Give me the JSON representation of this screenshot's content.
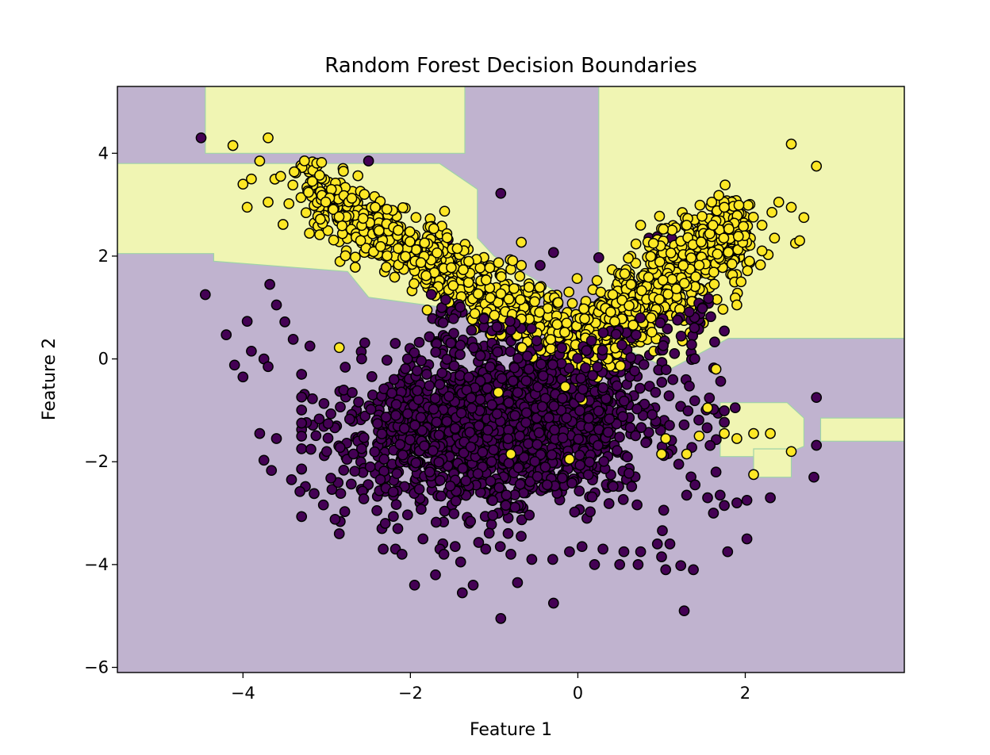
{
  "chart_data": {
    "type": "scatter",
    "title": "Random Forest Decision Boundaries",
    "xlabel": "Feature 1",
    "ylabel": "Feature 2",
    "xlim": [
      -5.5,
      3.9
    ],
    "ylim": [
      -6.1,
      5.3
    ],
    "x_ticks": [
      -4,
      -2,
      0,
      2
    ],
    "x_tick_labels": [
      "−4",
      "−2",
      "0",
      "2"
    ],
    "y_ticks": [
      -6,
      -4,
      -2,
      0,
      2,
      4
    ],
    "y_tick_labels": [
      "−6",
      "−4",
      "−2",
      "0",
      "2",
      "4"
    ],
    "grid": false,
    "legend": "none",
    "colors": {
      "class0_region": "#c0b3cf",
      "class1_region": "#f0f5b3",
      "class0_point": "#440154",
      "class1_point": "#fde725",
      "point_edge": "#000000"
    },
    "decision_regions": {
      "background_class": 0,
      "class1_polygons": [
        [
          [
            -4.45,
            5.3
          ],
          [
            -1.35,
            5.3
          ],
          [
            -1.35,
            4.0
          ],
          [
            -4.45,
            4.0
          ]
        ],
        [
          [
            -5.5,
            3.8
          ],
          [
            -1.65,
            3.8
          ],
          [
            -1.2,
            3.3
          ],
          [
            -1.2,
            2.35
          ],
          [
            -1.0,
            2.0
          ],
          [
            -0.3,
            1.35
          ],
          [
            -0.7,
            0.8
          ],
          [
            -2.5,
            1.2
          ],
          [
            -2.75,
            1.7
          ],
          [
            -4.35,
            1.9
          ],
          [
            -4.35,
            2.05
          ],
          [
            -5.5,
            2.05
          ]
        ],
        [
          [
            0.25,
            5.3
          ],
          [
            3.9,
            5.3
          ],
          [
            3.9,
            0.4
          ],
          [
            1.8,
            0.4
          ],
          [
            1.1,
            -0.2
          ],
          [
            0.3,
            0.4
          ],
          [
            0.25,
            0.9
          ]
        ],
        [
          [
            1.7,
            -0.85
          ],
          [
            2.5,
            -0.85
          ],
          [
            2.7,
            -1.15
          ],
          [
            2.7,
            -1.7
          ],
          [
            2.4,
            -1.9
          ],
          [
            1.7,
            -1.9
          ]
        ],
        [
          [
            2.9,
            -1.15
          ],
          [
            3.9,
            -1.15
          ],
          [
            3.9,
            -1.6
          ],
          [
            2.9,
            -1.6
          ]
        ],
        [
          [
            2.1,
            -1.75
          ],
          [
            2.55,
            -1.75
          ],
          [
            2.55,
            -2.3
          ],
          [
            2.1,
            -2.3
          ]
        ]
      ]
    },
    "series": [
      {
        "class": 0,
        "points": [
          [
            -4.5,
            4.3
          ],
          [
            -4.45,
            1.25
          ],
          [
            -2.5,
            3.85
          ],
          [
            -0.92,
            3.22
          ],
          [
            -4.2,
            0.47
          ],
          [
            -4.1,
            -0.12
          ],
          [
            -3.95,
            0.73
          ],
          [
            -4.0,
            -0.35
          ],
          [
            -3.9,
            0.15
          ],
          [
            -3.75,
            0.0
          ],
          [
            -3.7,
            -0.15
          ],
          [
            -3.68,
            1.45
          ],
          [
            -3.6,
            1.05
          ],
          [
            -3.5,
            0.72
          ],
          [
            -3.4,
            0.38
          ],
          [
            -3.3,
            -0.3
          ],
          [
            -3.2,
            0.25
          ],
          [
            -3.8,
            -1.45
          ],
          [
            -3.75,
            -1.97
          ],
          [
            -3.66,
            -2.17
          ],
          [
            -3.6,
            -1.55
          ],
          [
            -3.42,
            -2.35
          ],
          [
            -3.32,
            -2.58
          ],
          [
            -3.15,
            -2.62
          ],
          [
            -3.0,
            -1.8
          ],
          [
            -2.9,
            -3.12
          ],
          [
            -2.85,
            -3.4
          ],
          [
            -2.95,
            -2.32
          ],
          [
            -2.68,
            -1.85
          ],
          [
            -2.48,
            -2.1
          ],
          [
            -1.95,
            -4.4
          ],
          [
            -1.7,
            -4.2
          ],
          [
            -1.38,
            -4.55
          ],
          [
            -1.25,
            -4.4
          ],
          [
            -0.92,
            -5.05
          ],
          [
            -0.72,
            -4.35
          ],
          [
            -0.29,
            -4.75
          ],
          [
            0.2,
            -4.0
          ],
          [
            0.5,
            -4.0
          ],
          [
            0.72,
            -4.0
          ],
          [
            1.05,
            -4.1
          ],
          [
            1.23,
            -4.02
          ],
          [
            1.38,
            -4.1
          ],
          [
            1.27,
            -4.9
          ],
          [
            -1.55,
            2.32
          ],
          [
            -0.29,
            2.07
          ],
          [
            -0.45,
            1.82
          ],
          [
            0.25,
            1.97
          ],
          [
            0.85,
            2.35
          ],
          [
            0.95,
            2.38
          ],
          [
            1.12,
            2.35
          ],
          [
            1.88,
            -0.95
          ],
          [
            1.9,
            -2.8
          ],
          [
            1.79,
            -3.75
          ],
          [
            2.02,
            -2.75
          ],
          [
            2.02,
            -3.5
          ],
          [
            2.3,
            -2.7
          ],
          [
            2.85,
            -0.75
          ],
          [
            2.82,
            -2.3
          ],
          [
            2.85,
            -1.68
          ],
          [
            1.62,
            -3.0
          ],
          [
            1.55,
            -2.7
          ],
          [
            1.4,
            -2.45
          ],
          [
            1.3,
            -2.65
          ],
          [
            1.7,
            -2.65
          ],
          [
            1.65,
            -2.2
          ],
          [
            1.1,
            -3.6
          ],
          [
            1.0,
            -3.85
          ],
          [
            0.95,
            -3.6
          ],
          [
            0.75,
            -3.75
          ],
          [
            0.55,
            -3.75
          ],
          [
            0.3,
            -3.7
          ],
          [
            0.05,
            -3.65
          ],
          [
            -0.1,
            -3.75
          ],
          [
            -0.3,
            -3.9
          ],
          [
            -0.55,
            -3.9
          ],
          [
            -0.8,
            -3.8
          ],
          [
            -1.1,
            -3.7
          ],
          [
            -1.4,
            -3.95
          ],
          [
            -1.6,
            -3.8
          ],
          [
            -1.85,
            -3.5
          ],
          [
            -2.1,
            -3.8
          ],
          [
            -2.15,
            -3.3
          ],
          [
            -2.3,
            -3.2
          ],
          [
            -2.4,
            -2.95
          ]
        ],
        "cluster": {
          "center": [
            -0.9,
            -1.3
          ],
          "spread": [
            1.15,
            1.05
          ],
          "count": 1750,
          "xlim": [
            -3.3,
            1.75
          ],
          "ylim": [
            -3.7,
            1.5
          ]
        }
      },
      {
        "class": 1,
        "points": [
          [
            -4.12,
            4.15
          ],
          [
            -3.7,
            4.3
          ],
          [
            -3.8,
            3.85
          ],
          [
            -3.9,
            3.5
          ],
          [
            -4.0,
            3.4
          ],
          [
            -3.95,
            2.95
          ],
          [
            -3.7,
            3.05
          ],
          [
            -3.55,
            3.55
          ],
          [
            -2.8,
            3.65
          ],
          [
            -2.42,
            2.95
          ],
          [
            -2.55,
            3.2
          ],
          [
            2.85,
            3.75
          ],
          [
            2.55,
            4.18
          ],
          [
            2.6,
            2.25
          ],
          [
            2.65,
            2.3
          ],
          [
            2.7,
            2.75
          ],
          [
            2.4,
            3.05
          ],
          [
            2.55,
            2.95
          ],
          [
            2.1,
            -1.45
          ],
          [
            2.3,
            -1.45
          ],
          [
            2.55,
            -1.8
          ],
          [
            2.1,
            -2.25
          ],
          [
            1.75,
            -1.45
          ],
          [
            1.9,
            -1.55
          ],
          [
            -2.85,
            0.22
          ],
          [
            -0.95,
            -0.65
          ],
          [
            -0.8,
            -1.85
          ],
          [
            -0.1,
            -1.95
          ],
          [
            -1.8,
            0.95
          ],
          [
            0.75,
            2.6
          ],
          [
            1.3,
            2.6
          ],
          [
            1.6,
            3.05
          ],
          [
            1.75,
            2.95
          ],
          [
            2.2,
            2.6
          ],
          [
            2.35,
            2.35
          ],
          [
            2.2,
            2.1
          ],
          [
            2.05,
            1.9
          ],
          [
            1.95,
            1.5
          ],
          [
            1.9,
            1.05
          ],
          [
            1.5,
            0.7
          ],
          [
            1.25,
            0.35
          ],
          [
            1.65,
            -0.2
          ],
          [
            1.55,
            -0.95
          ],
          [
            1.45,
            -1.5
          ],
          [
            1.3,
            -1.85
          ],
          [
            1.05,
            -1.55
          ],
          [
            1.0,
            -1.85
          ]
        ],
        "bands": [
          {
            "from": [
              -3.3,
              3.3
            ],
            "to": [
              -0.2,
              0.55
            ],
            "width": 0.33,
            "count": 650
          },
          {
            "from": [
              1.95,
              2.6
            ],
            "to": [
              -0.05,
              0.2
            ],
            "width": 0.38,
            "count": 850
          }
        ]
      }
    ]
  }
}
